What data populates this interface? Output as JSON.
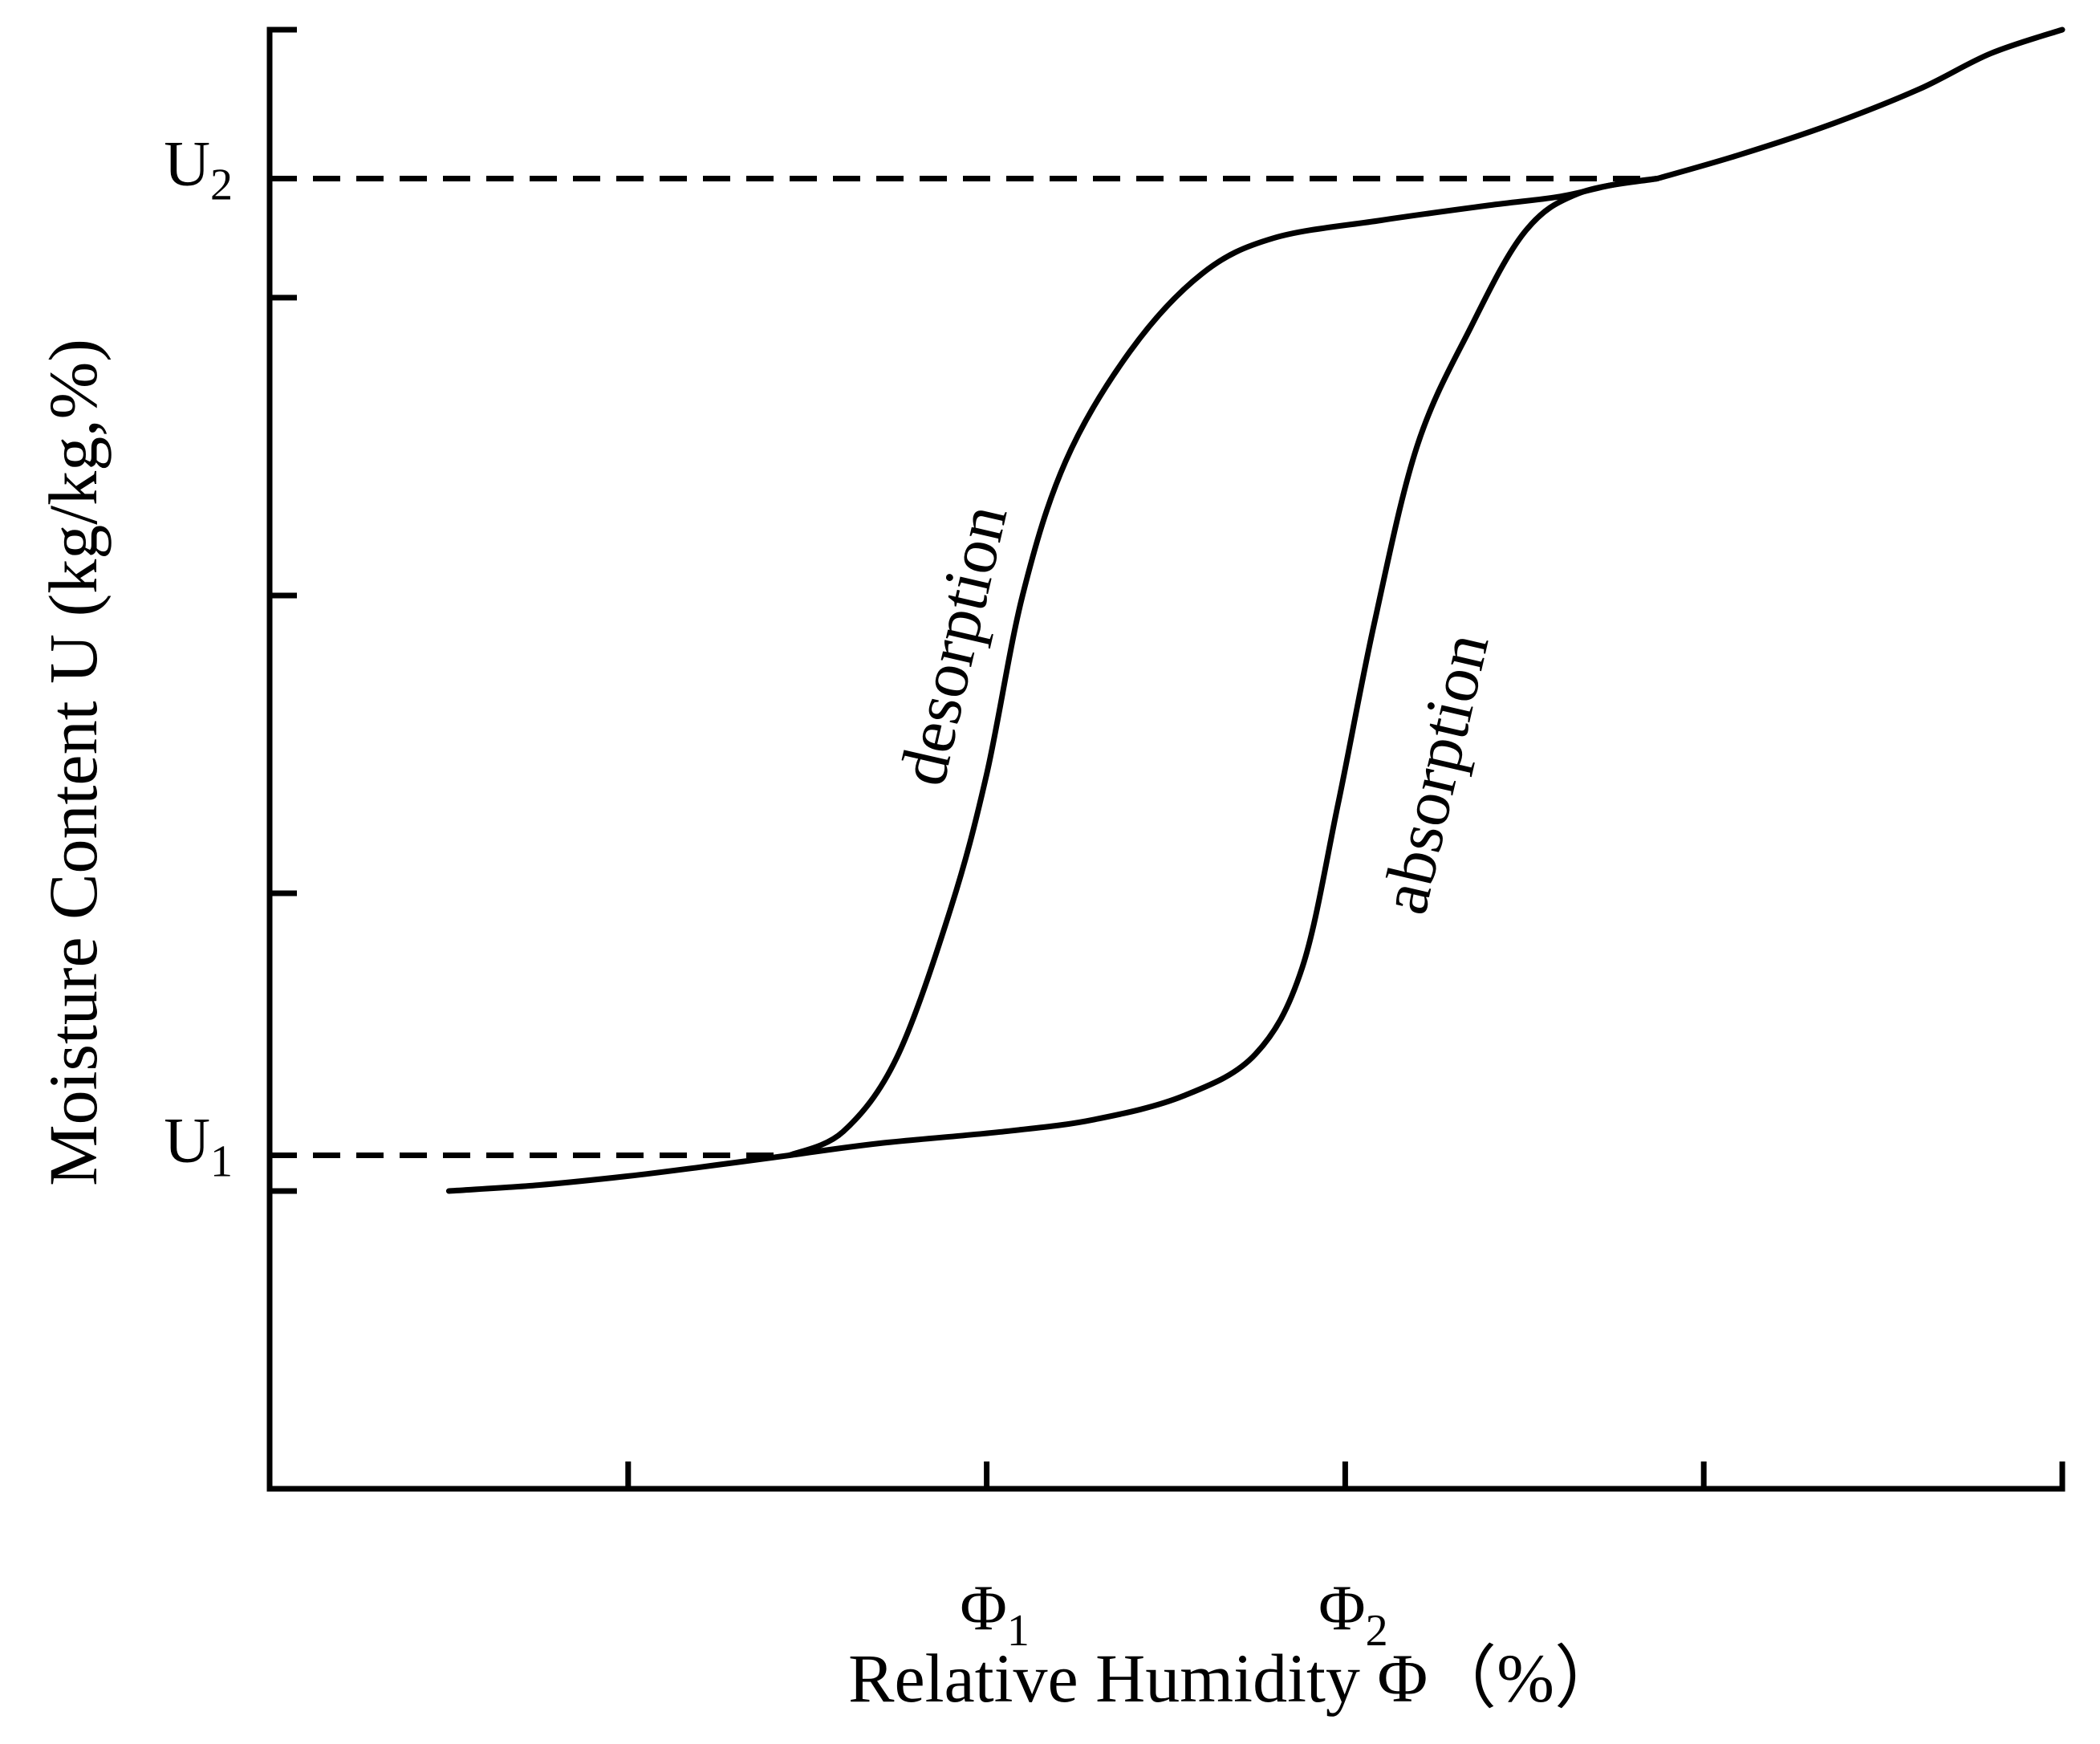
{
  "chart_data": {
    "type": "line",
    "xlabel": "Relative Humidity Φ（%）",
    "ylabel": "Moisture Content U (kg/kg,%)",
    "x_tick_labels": [
      {
        "base": "Φ",
        "sub": "1",
        "x": 2.0
      },
      {
        "base": "Φ",
        "sub": "2",
        "x": 3.0
      }
    ],
    "y_tick_labels": [
      {
        "base": "U",
        "sub": "1",
        "y": 0.22
      },
      {
        "base": "U",
        "sub": "2",
        "y": 3.5
      }
    ],
    "x_ticks": [
      1,
      2,
      3,
      4,
      5
    ],
    "y_ticks": [
      0.1,
      1.1,
      2.1,
      3.1
    ],
    "xlim": [
      0,
      5
    ],
    "ylim": [
      -0.9,
      4.0
    ],
    "grid": false,
    "legend": "none",
    "reference_lines": [
      {
        "type": "horizontal",
        "label": "U1",
        "y": 0.22,
        "x_end": 1.45
      },
      {
        "type": "horizontal",
        "label": "U2",
        "y": 3.5,
        "x_end": 3.87
      }
    ],
    "series": [
      {
        "name": "desorption",
        "points": [
          [
            1.45,
            0.22
          ],
          [
            1.6,
            0.3
          ],
          [
            1.75,
            0.55
          ],
          [
            1.9,
            1.05
          ],
          [
            2.0,
            1.5
          ],
          [
            2.1,
            2.1
          ],
          [
            2.22,
            2.55
          ],
          [
            2.4,
            2.92
          ],
          [
            2.6,
            3.18
          ],
          [
            2.8,
            3.3
          ],
          [
            3.1,
            3.36
          ],
          [
            3.4,
            3.41
          ],
          [
            3.6,
            3.44
          ],
          [
            3.75,
            3.48
          ],
          [
            3.87,
            3.5
          ]
        ]
      },
      {
        "name": "absorption",
        "points": [
          [
            1.45,
            0.22
          ],
          [
            1.7,
            0.26
          ],
          [
            2.05,
            0.3
          ],
          [
            2.3,
            0.34
          ],
          [
            2.55,
            0.42
          ],
          [
            2.75,
            0.56
          ],
          [
            2.88,
            0.85
          ],
          [
            2.98,
            1.4
          ],
          [
            3.08,
            2.0
          ],
          [
            3.2,
            2.6
          ],
          [
            3.35,
            3.0
          ],
          [
            3.5,
            3.32
          ],
          [
            3.65,
            3.45
          ],
          [
            3.87,
            3.5
          ]
        ]
      },
      {
        "name": "",
        "points": [
          [
            0.5,
            0.1
          ],
          [
            0.75,
            0.12
          ],
          [
            1.0,
            0.15
          ],
          [
            1.2,
            0.18
          ],
          [
            1.45,
            0.22
          ]
        ]
      },
      {
        "name": "",
        "points": [
          [
            3.87,
            3.5
          ],
          [
            4.1,
            3.58
          ],
          [
            4.35,
            3.68
          ],
          [
            4.6,
            3.8
          ],
          [
            4.8,
            3.92
          ],
          [
            5.0,
            4.0
          ]
        ]
      }
    ],
    "annotations": [
      {
        "text": "desorption",
        "series": "desorption"
      },
      {
        "text": "absorption",
        "series": "absorption"
      }
    ]
  }
}
